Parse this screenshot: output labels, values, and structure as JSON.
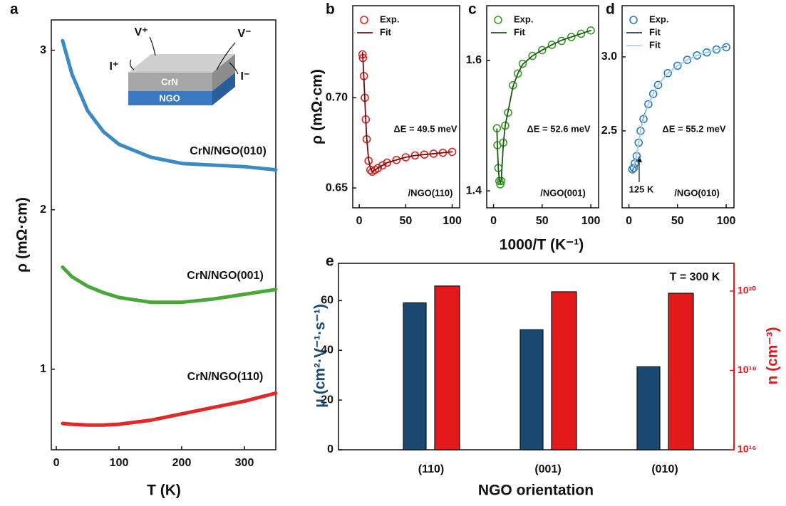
{
  "chart_data": [
    {
      "type": "line",
      "panel_label": "a",
      "x_label": "T (K)",
      "y_label": "ρ (mΩ·cm)",
      "xlim": [
        -8,
        350
      ],
      "xticks": [
        0,
        100,
        200,
        300
      ],
      "ylim": [
        0.495,
        3.19
      ],
      "yticks": [
        1,
        2,
        3
      ],
      "inset_labels": [
        "V⁺",
        "V⁻",
        "I⁺",
        "I⁻",
        "CrN",
        "NGO"
      ],
      "x": [
        10,
        25,
        50,
        75,
        100,
        150,
        200,
        250,
        300,
        350
      ],
      "series": [
        {
          "name": "CrN/NGO(010)",
          "color": "#3b8ac4",
          "values": [
            3.06,
            2.85,
            2.62,
            2.49,
            2.41,
            2.33,
            2.29,
            2.28,
            2.27,
            2.25
          ]
        },
        {
          "name": "CrN/NGO(001)",
          "color": "#4aa83a",
          "values": [
            1.64,
            1.58,
            1.52,
            1.48,
            1.45,
            1.42,
            1.42,
            1.44,
            1.47,
            1.5
          ]
        },
        {
          "name": "CrN/NGO(110)",
          "color": "#e02a2a",
          "values": [
            0.66,
            0.655,
            0.65,
            0.65,
            0.655,
            0.68,
            0.72,
            0.76,
            0.8,
            0.85
          ]
        }
      ]
    },
    {
      "type": "scatter",
      "panel_label": "b",
      "y_label": "ρ (mΩ·cm)",
      "xlim": [
        -7,
        108
      ],
      "xticks": [
        0,
        50,
        100
      ],
      "ylim": [
        0.639,
        0.751
      ],
      "yticks": [
        {
          "value": 0.65,
          "label": "0.65"
        },
        {
          "value": 0.7,
          "label": "0.70"
        }
      ],
      "annotations": [
        "ΔE = 49.5 meV",
        "/NGO(110)"
      ],
      "x": [
        3.5,
        4,
        5,
        6,
        7,
        8,
        10,
        12,
        14,
        17,
        20,
        25,
        30,
        40,
        50,
        60,
        70,
        80,
        90,
        100
      ],
      "series": [
        {
          "name": "Exp.",
          "color": "#e02020",
          "marker": "circle",
          "values": [
            0.724,
            0.722,
            0.712,
            0.7,
            0.688,
            0.677,
            0.665,
            0.66,
            0.659,
            0.66,
            0.661,
            0.6625,
            0.664,
            0.6655,
            0.667,
            0.668,
            0.6685,
            0.669,
            0.6695,
            0.67
          ]
        },
        {
          "name": "Fit",
          "color": "#6b0f0f",
          "values": [
            0.725,
            0.721,
            0.711,
            0.699,
            0.688,
            0.678,
            0.666,
            0.661,
            0.659,
            0.66,
            0.661,
            0.6625,
            0.664,
            0.6655,
            0.667,
            0.668,
            0.6685,
            0.669,
            0.6695,
            0.67
          ]
        }
      ]
    },
    {
      "type": "scatter",
      "panel_label": "c",
      "x_label": "1000/T (K⁻¹)",
      "xlim": [
        -7,
        108
      ],
      "xticks": [
        0,
        50,
        100
      ],
      "ylim": [
        1.374,
        1.684
      ],
      "yticks": [
        1.4,
        1.6
      ],
      "annotations": [
        "ΔE = 52.6 meV",
        "/NGO(001)"
      ],
      "x": [
        3.5,
        4,
        5,
        6,
        7,
        8,
        10,
        12,
        15,
        20,
        25,
        30,
        40,
        50,
        60,
        70,
        80,
        90,
        100
      ],
      "series": [
        {
          "name": "Exp.",
          "color": "#3a9a2a",
          "marker": "circle",
          "values": [
            1.496,
            1.47,
            1.435,
            1.415,
            1.41,
            1.415,
            1.474,
            1.5,
            1.52,
            1.562,
            1.58,
            1.595,
            1.607,
            1.616,
            1.624,
            1.63,
            1.636,
            1.641,
            1.646
          ]
        },
        {
          "name": "Fit",
          "color": "#1e5a14",
          "values": [
            1.495,
            1.468,
            1.434,
            1.416,
            1.412,
            1.418,
            1.47,
            1.5,
            1.522,
            1.56,
            1.58,
            1.594,
            1.607,
            1.616,
            1.624,
            1.631,
            1.636,
            1.641,
            1.646
          ]
        }
      ]
    },
    {
      "type": "scatter",
      "panel_label": "d",
      "xlim": [
        -7,
        108
      ],
      "xticks": [
        0,
        50,
        100
      ],
      "ylim": [
        1.98,
        3.346
      ],
      "yticks": [
        {
          "value": 2.5,
          "label": "2.5"
        },
        {
          "value": 3,
          "label": "3.0"
        }
      ],
      "annotations": [
        "ΔE = 55.2 meV",
        "/NGO(010)",
        "125 K"
      ],
      "x": [
        3.5,
        5,
        6,
        8,
        10,
        12,
        15,
        20,
        25,
        30,
        40,
        50,
        60,
        70,
        80,
        90,
        100
      ],
      "series": [
        {
          "name": "Exp.",
          "color": "#2b7bb9",
          "marker": "circle",
          "values": [
            2.24,
            2.25,
            2.28,
            2.33,
            2.42,
            2.5,
            2.58,
            2.68,
            2.75,
            2.81,
            2.89,
            2.94,
            2.98,
            3.01,
            3.03,
            3.05,
            3.065
          ]
        },
        {
          "name": "Fit",
          "color": "#1f3f66",
          "values": [
            2.23,
            2.25,
            2.28,
            2.34,
            2.42,
            2.5,
            2.59,
            2.68,
            2.75,
            2.81,
            2.89,
            2.94,
            2.98,
            3.01,
            3.03,
            3.05,
            3.07
          ]
        },
        {
          "name": "Fit",
          "color": "#a8d4ee",
          "values": [
            2.24,
            2.26,
            2.29,
            2.34,
            2.42,
            2.5,
            2.58,
            2.68,
            2.75,
            2.81,
            2.89,
            2.94,
            2.98,
            3.01,
            3.03,
            3.05,
            3.065
          ]
        }
      ]
    },
    {
      "type": "bar",
      "panel_label": "e",
      "x_label": "NGO orientation",
      "y_label": "μ (cm²·V⁻¹·s⁻¹)",
      "y2_label": "n (cm⁻³)",
      "annotations": [
        "T = 300 K"
      ],
      "categories": [
        "(110)",
        "(001)",
        "(010)"
      ],
      "ylim": [
        0,
        75
      ],
      "yticks": [
        0,
        20,
        40,
        60
      ],
      "y2lim": [
        1e+16,
        5e+20
      ],
      "y2log": true,
      "y2ticks": [
        {
          "value": 1e+16,
          "label": "10¹⁶"
        },
        {
          "value": 1e+18,
          "label": "10¹⁸"
        },
        {
          "value": 1e+20,
          "label": "10²⁰"
        }
      ],
      "series": [
        {
          "color": "#1a4a72",
          "values": [
            59.1,
            48.3,
            33.4
          ]
        },
        {
          "color": "#e3191c",
          "axis": "y2",
          "values": [
            1.34e+20,
            9.6e+19,
            8.8e+19
          ]
        }
      ]
    }
  ]
}
